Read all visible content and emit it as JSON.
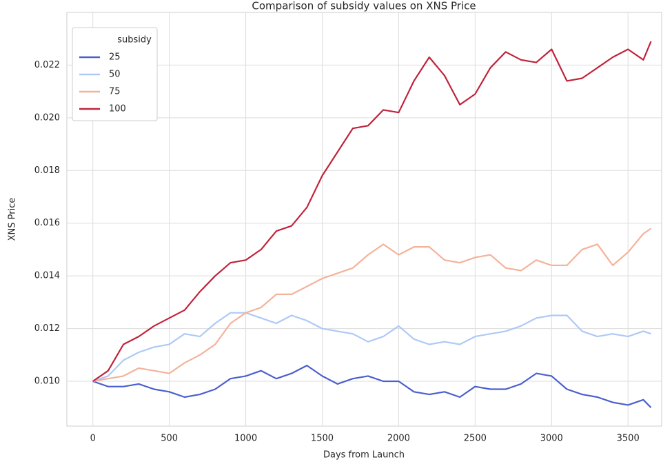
{
  "chart_data": {
    "type": "line",
    "title": "Comparison of subsidy values on XNS Price",
    "x_label": "Days from Launch",
    "y_label": "XNS Price",
    "legend_title": "subsidy",
    "legend": "upper left",
    "grid": true,
    "x": [
      0,
      100,
      200,
      300,
      400,
      500,
      600,
      700,
      800,
      900,
      1000,
      1100,
      1200,
      1300,
      1400,
      1500,
      1600,
      1700,
      1800,
      1900,
      2000,
      2100,
      2200,
      2300,
      2400,
      2500,
      2600,
      2700,
      2800,
      2900,
      3000,
      3100,
      3200,
      3300,
      3400,
      3500,
      3600,
      3650
    ],
    "series": [
      {
        "name": "25",
        "color": "#4a5fcf",
        "values": [
          0.01,
          0.0098,
          0.0098,
          0.0099,
          0.0097,
          0.0096,
          0.0094,
          0.0095,
          0.0097,
          0.0101,
          0.0102,
          0.0104,
          0.0101,
          0.0103,
          0.0106,
          0.0102,
          0.0099,
          0.0101,
          0.0102,
          0.01,
          0.01,
          0.0096,
          0.0095,
          0.0096,
          0.0094,
          0.0098,
          0.0097,
          0.0097,
          0.0099,
          0.0103,
          0.0102,
          0.0097,
          0.0095,
          0.0094,
          0.0092,
          0.0091,
          0.0093,
          0.009
        ]
      },
      {
        "name": "50",
        "color": "#aec9f7",
        "values": [
          0.01,
          0.0102,
          0.0108,
          0.0111,
          0.0113,
          0.0114,
          0.0118,
          0.0117,
          0.0122,
          0.0126,
          0.0126,
          0.0124,
          0.0122,
          0.0125,
          0.0123,
          0.012,
          0.0119,
          0.0118,
          0.0115,
          0.0117,
          0.0121,
          0.0116,
          0.0114,
          0.0115,
          0.0114,
          0.0117,
          0.0118,
          0.0119,
          0.0121,
          0.0124,
          0.0125,
          0.0125,
          0.0119,
          0.0117,
          0.0118,
          0.0117,
          0.0119,
          0.0118
        ]
      },
      {
        "name": "75",
        "color": "#f4b29a",
        "values": [
          0.01,
          0.0101,
          0.0102,
          0.0105,
          0.0104,
          0.0103,
          0.0107,
          0.011,
          0.0114,
          0.0122,
          0.0126,
          0.0128,
          0.0133,
          0.0133,
          0.0136,
          0.0139,
          0.0141,
          0.0143,
          0.0148,
          0.0152,
          0.0148,
          0.0151,
          0.0151,
          0.0146,
          0.0145,
          0.0147,
          0.0148,
          0.0143,
          0.0142,
          0.0146,
          0.0144,
          0.0144,
          0.015,
          0.0152,
          0.0144,
          0.0149,
          0.0156,
          0.0158
        ]
      },
      {
        "name": "100",
        "color": "#c0233b",
        "values": [
          0.01,
          0.0104,
          0.0114,
          0.0117,
          0.0121,
          0.0124,
          0.0127,
          0.0134,
          0.014,
          0.0145,
          0.0146,
          0.015,
          0.0157,
          0.0159,
          0.0166,
          0.0178,
          0.0187,
          0.0196,
          0.0197,
          0.0203,
          0.0202,
          0.0214,
          0.0223,
          0.0216,
          0.0205,
          0.0209,
          0.0219,
          0.0225,
          0.0222,
          0.0221,
          0.0226,
          0.0214,
          0.0215,
          0.0219,
          0.0223,
          0.0226,
          0.0222,
          0.0229
        ]
      }
    ],
    "xlim": [
      -170,
      3720
    ],
    "xticks": [
      0,
      500,
      1000,
      1500,
      2000,
      2500,
      3000,
      3500
    ],
    "ylim": [
      0.0083,
      0.024
    ],
    "yticks": [
      {
        "value": 0.01,
        "label": "0.010"
      },
      0.012,
      0.014,
      0.016,
      0.018,
      {
        "value": 0.02,
        "label": "0.020"
      },
      0.022
    ]
  }
}
